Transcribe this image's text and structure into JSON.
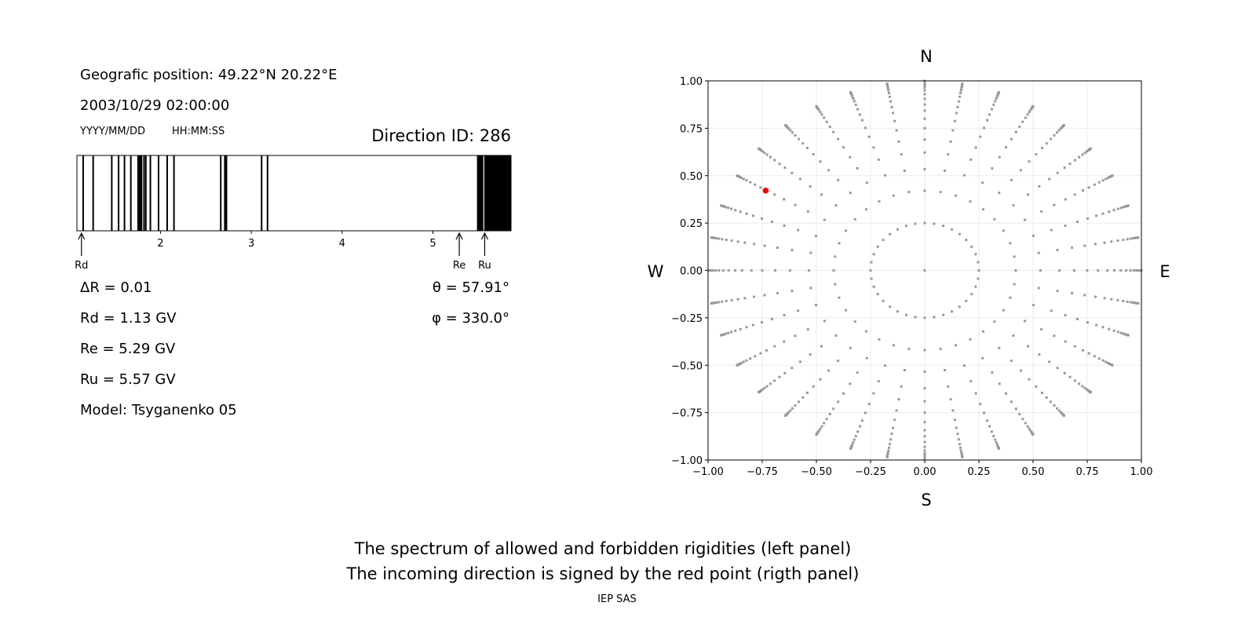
{
  "left_panel": {
    "position": "Geografic position: 49.22°N 20.22°E",
    "datetime": "2003/10/29 02:00:00",
    "date_format": "YYYY/MM/DD",
    "time_format": "HH:MM:SS",
    "direction_id": "Direction ID: 286",
    "delta_r": "ΔR = 0.01",
    "rd": "Rd = 1.13 GV",
    "re": "Re = 5.29 GV",
    "ru": "Ru = 5.57 GV",
    "model": "Model: Tsyganenko 05",
    "theta": "θ = 57.91°",
    "phi": "φ = 330.0°"
  },
  "chart_data": [
    {
      "type": "bar",
      "subtype": "rigidity-spectrum",
      "xlim": [
        1.08,
        5.86
      ],
      "xticks": [
        2,
        3,
        4,
        5
      ],
      "xtick_labels": [
        "2",
        "3",
        "4",
        "5"
      ],
      "forbidden_color": "#000000",
      "allowed_color": "#ffffff",
      "forbidden_intervals": [
        [
          1.14,
          1.15
        ],
        [
          1.25,
          1.26
        ],
        [
          1.455,
          1.465
        ],
        [
          1.53,
          1.54
        ],
        [
          1.595,
          1.605
        ],
        [
          1.665,
          1.675
        ],
        [
          1.745,
          1.8
        ],
        [
          1.81,
          1.815
        ],
        [
          1.83,
          1.835
        ],
        [
          1.88,
          1.89
        ],
        [
          1.97,
          1.975
        ],
        [
          2.065,
          2.08
        ],
        [
          2.14,
          2.145
        ],
        [
          2.655,
          2.66
        ],
        [
          2.7,
          2.735
        ],
        [
          3.105,
          3.11
        ],
        [
          3.17,
          3.18
        ],
        [
          5.485,
          5.555
        ],
        [
          5.565,
          5.86
        ]
      ],
      "markers": [
        {
          "label": "Rd",
          "value": 1.13
        },
        {
          "label": "Re",
          "value": 5.29
        },
        {
          "label": "Ru",
          "value": 5.57
        }
      ]
    },
    {
      "type": "scatter",
      "xlim": [
        -1,
        1
      ],
      "ylim": [
        -1,
        1
      ],
      "grid": true,
      "xtick_labels": [
        "−1.00",
        "−0.75",
        "−0.50",
        "−0.25",
        "0.00",
        "0.25",
        "0.50",
        "0.75",
        "1.00"
      ],
      "ytick_labels": [
        "−1.00",
        "−0.75",
        "−0.50",
        "−0.25",
        "0.00",
        "0.25",
        "0.50",
        "0.75",
        "1.00"
      ],
      "ticks": [
        -1,
        -0.75,
        -0.5,
        -0.25,
        0,
        0.25,
        0.5,
        0.75,
        1
      ],
      "compass": {
        "north": "N",
        "south": "S",
        "west": "W",
        "east": "E"
      },
      "point_color": "#999999",
      "highlight_color": "#ff0000",
      "grid_azimuths_deg_step": 10,
      "grid_radii": [
        0.25,
        0.42,
        0.534,
        0.622,
        0.69,
        0.75,
        0.8,
        0.843,
        0.875,
        0.905,
        0.93,
        0.95,
        0.965,
        0.977,
        0.985,
        0.991,
        0.995,
        0.998,
        1.0
      ],
      "center_point": [
        0,
        0
      ],
      "highlight_point": {
        "x": -0.734,
        "y": 0.421
      }
    }
  ],
  "caption": {
    "line1": "The spectrum of allowed and forbidden rigidities (left panel)",
    "line2": "The incoming direction is signed by the red point (rigth panel)",
    "credit": "IEP SAS"
  }
}
